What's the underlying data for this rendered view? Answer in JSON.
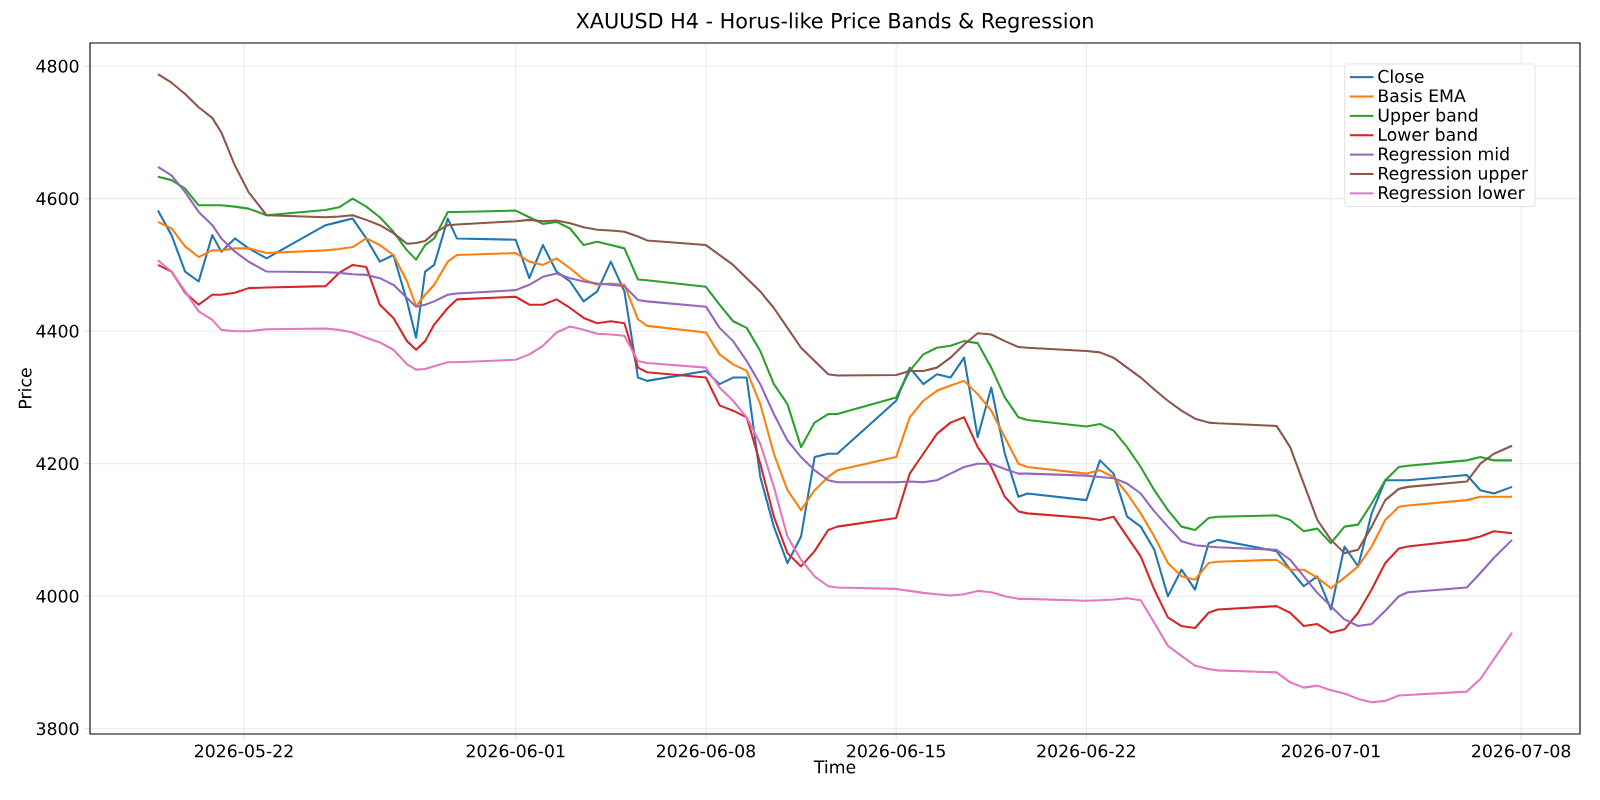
{
  "chart_data": {
    "type": "line",
    "title": "XAUUSD H4 - Horus-like Price Bands & Regression",
    "xlabel": "Time",
    "ylabel": "Price",
    "x": [
      "2026-05-18T20:00",
      "2026-05-19T08:00",
      "2026-05-19T20:00",
      "2026-05-20T08:00",
      "2026-05-20T20:00",
      "2026-05-21T04:00",
      "2026-05-21T16:00",
      "2026-05-22T04:00",
      "2026-05-22T20:00",
      "2026-05-25T00:00",
      "2026-05-25T12:00",
      "2026-05-26T00:00",
      "2026-05-26T12:00",
      "2026-05-27T00:00",
      "2026-05-27T12:00",
      "2026-05-28T00:00",
      "2026-05-28T08:00",
      "2026-05-28T16:00",
      "2026-05-29T00:00",
      "2026-05-29T12:00",
      "2026-05-29T20:00",
      "2026-06-01T00:00",
      "2026-06-01T12:00",
      "2026-06-02T00:00",
      "2026-06-02T12:00",
      "2026-06-03T00:00",
      "2026-06-03T12:00",
      "2026-06-04T00:00",
      "2026-06-04T12:00",
      "2026-06-05T00:00",
      "2026-06-05T12:00",
      "2026-06-05T20:00",
      "2026-06-08T00:00",
      "2026-06-08T12:00",
      "2026-06-09T00:00",
      "2026-06-09T12:00",
      "2026-06-10T00:00",
      "2026-06-10T12:00",
      "2026-06-11T00:00",
      "2026-06-11T12:00",
      "2026-06-12T00:00",
      "2026-06-12T12:00",
      "2026-06-12T20:00",
      "2026-06-15T00:00",
      "2026-06-15T12:00",
      "2026-06-16T00:00",
      "2026-06-16T12:00",
      "2026-06-17T00:00",
      "2026-06-17T12:00",
      "2026-06-18T00:00",
      "2026-06-18T12:00",
      "2026-06-19T00:00",
      "2026-06-19T12:00",
      "2026-06-19T20:00",
      "2026-06-22T00:00",
      "2026-06-22T12:00",
      "2026-06-23T00:00",
      "2026-06-23T12:00",
      "2026-06-24T00:00",
      "2026-06-24T12:00",
      "2026-06-25T00:00",
      "2026-06-25T12:00",
      "2026-06-26T00:00",
      "2026-06-26T12:00",
      "2026-06-26T20:00",
      "2026-06-29T00:00",
      "2026-06-29T12:00",
      "2026-06-30T00:00",
      "2026-06-30T12:00",
      "2026-07-01T00:00",
      "2026-07-01T12:00",
      "2026-07-02T00:00",
      "2026-07-02T12:00",
      "2026-07-03T00:00",
      "2026-07-03T12:00",
      "2026-07-03T20:00",
      "2026-07-06T00:00",
      "2026-07-06T12:00",
      "2026-07-07T00:00",
      "2026-07-07T16:00"
    ],
    "series": [
      {
        "name": "Close",
        "color": "#1f77b4",
        "values": [
          4582,
          4545,
          4490,
          4475,
          4545,
          4520,
          4540,
          4525,
          4510,
          4560,
          4565,
          4570,
          4540,
          4505,
          4515,
          4445,
          4390,
          4490,
          4500,
          4570,
          4540,
          4538,
          4480,
          4530,
          4490,
          4475,
          4445,
          4460,
          4505,
          4460,
          4330,
          4325,
          4340,
          4320,
          4330,
          4330,
          4180,
          4105,
          4050,
          4090,
          4210,
          4215,
          4215,
          4295,
          4345,
          4320,
          4335,
          4330,
          4360,
          4240,
          4315,
          4215,
          4150,
          4155,
          4145,
          4205,
          4185,
          4120,
          4105,
          4070,
          4000,
          4040,
          4010,
          4080,
          4085,
          4068,
          4040,
          4015,
          4030,
          3980,
          4075,
          4045,
          4125,
          4175,
          4175,
          4175,
          4183,
          4160,
          4155,
          4165
        ]
      },
      {
        "name": "Basis EMA",
        "color": "#ff7f0e",
        "values": [
          4565,
          4555,
          4528,
          4512,
          4522,
          4522,
          4525,
          4525,
          4518,
          4522,
          4524,
          4527,
          4540,
          4530,
          4515,
          4475,
          4438,
          4455,
          4470,
          4505,
          4515,
          4518,
          4505,
          4500,
          4510,
          4495,
          4478,
          4470,
          4472,
          4470,
          4418,
          4408,
          4398,
          4365,
          4350,
          4340,
          4290,
          4215,
          4160,
          4130,
          4160,
          4180,
          4190,
          4210,
          4270,
          4295,
          4310,
          4318,
          4325,
          4305,
          4280,
          4240,
          4200,
          4195,
          4185,
          4190,
          4180,
          4155,
          4125,
          4090,
          4050,
          4030,
          4025,
          4050,
          4052,
          4055,
          4040,
          4040,
          4028,
          4012,
          4028,
          4045,
          4075,
          4115,
          4135,
          4137,
          4145,
          4150,
          4150,
          4150
        ]
      },
      {
        "name": "Upper band",
        "color": "#2ca02c",
        "values": [
          4633,
          4628,
          4615,
          4590,
          4590,
          4590,
          4588,
          4585,
          4575,
          4583,
          4587,
          4600,
          4588,
          4572,
          4550,
          4522,
          4508,
          4530,
          4540,
          4580,
          4580,
          4582,
          4572,
          4562,
          4565,
          4555,
          4530,
          4535,
          4530,
          4525,
          4478,
          4477,
          4467,
          4440,
          4415,
          4405,
          4370,
          4320,
          4290,
          4225,
          4262,
          4275,
          4275,
          4300,
          4340,
          4365,
          4375,
          4378,
          4385,
          4382,
          4345,
          4300,
          4270,
          4266,
          4256,
          4260,
          4250,
          4225,
          4195,
          4160,
          4130,
          4105,
          4100,
          4118,
          4120,
          4122,
          4115,
          4098,
          4102,
          4080,
          4105,
          4108,
          4140,
          4175,
          4195,
          4197,
          4205,
          4210,
          4205,
          4205
        ]
      },
      {
        "name": "Lower band",
        "color": "#d62728",
        "values": [
          4500,
          4490,
          4458,
          4440,
          4455,
          4455,
          4458,
          4465,
          4466,
          4468,
          4488,
          4500,
          4497,
          4440,
          4420,
          4385,
          4372,
          4385,
          4410,
          4435,
          4448,
          4452,
          4440,
          4440,
          4448,
          4435,
          4420,
          4412,
          4415,
          4412,
          4345,
          4338,
          4330,
          4288,
          4280,
          4270,
          4200,
          4120,
          4065,
          4045,
          4068,
          4100,
          4105,
          4118,
          4185,
          4215,
          4245,
          4262,
          4270,
          4225,
          4195,
          4150,
          4128,
          4125,
          4118,
          4115,
          4120,
          4090,
          4060,
          4010,
          3968,
          3955,
          3952,
          3975,
          3980,
          3985,
          3975,
          3955,
          3958,
          3945,
          3950,
          3975,
          4010,
          4050,
          4072,
          4075,
          4085,
          4090,
          4098,
          4095
        ]
      },
      {
        "name": "Regression mid",
        "color": "#9467bd",
        "values": [
          4648,
          4635,
          4610,
          4580,
          4560,
          4540,
          4520,
          4505,
          4490,
          4489,
          4488,
          4486,
          4485,
          4480,
          4470,
          4450,
          4437,
          4440,
          4445,
          4455,
          4457,
          4462,
          4470,
          4482,
          4487,
          4480,
          4475,
          4472,
          4470,
          4468,
          4447,
          4445,
          4437,
          4405,
          4385,
          4355,
          4320,
          4275,
          4235,
          4210,
          4190,
          4175,
          4172,
          4172,
          4173,
          4172,
          4175,
          4185,
          4195,
          4200,
          4200,
          4192,
          4185,
          4185,
          4182,
          4180,
          4178,
          4170,
          4155,
          4128,
          4105,
          4083,
          4077,
          4075,
          4074,
          4070,
          4055,
          4030,
          4005,
          3985,
          3965,
          3955,
          3958,
          3978,
          4000,
          4006,
          4013,
          4035,
          4058,
          4085
        ]
      },
      {
        "name": "Regression upper",
        "color": "#8c564b",
        "values": [
          4788,
          4775,
          4758,
          4738,
          4722,
          4700,
          4650,
          4610,
          4575,
          4572,
          4573,
          4575,
          4568,
          4560,
          4548,
          4532,
          4533,
          4536,
          4548,
          4560,
          4561,
          4566,
          4568,
          4566,
          4567,
          4563,
          4557,
          4553,
          4552,
          4550,
          4543,
          4537,
          4530,
          4515,
          4500,
          4480,
          4460,
          4435,
          4405,
          4375,
          4355,
          4335,
          4333,
          4334,
          4340,
          4340,
          4345,
          4360,
          4380,
          4397,
          4395,
          4385,
          4376,
          4375,
          4370,
          4368,
          4360,
          4345,
          4330,
          4312,
          4295,
          4280,
          4268,
          4262,
          4261,
          4257,
          4225,
          4170,
          4115,
          4085,
          4065,
          4070,
          4105,
          4145,
          4162,
          4165,
          4173,
          4200,
          4215,
          4227
        ]
      },
      {
        "name": "Regression lower",
        "color": "#e377c2",
        "values": [
          4507,
          4490,
          4460,
          4430,
          4417,
          4402,
          4400,
          4400,
          4403,
          4404,
          4402,
          4398,
          4390,
          4383,
          4372,
          4350,
          4342,
          4343,
          4347,
          4353,
          4353,
          4357,
          4365,
          4378,
          4398,
          4407,
          4402,
          4396,
          4395,
          4393,
          4355,
          4352,
          4345,
          4315,
          4295,
          4270,
          4230,
          4165,
          4090,
          4055,
          4030,
          4015,
          4013,
          4011,
          4008,
          4005,
          4003,
          4001,
          4003,
          4008,
          4006,
          4000,
          3996,
          3996,
          3993,
          3994,
          3995,
          3997,
          3994,
          3960,
          3925,
          3910,
          3895,
          3890,
          3888,
          3885,
          3870,
          3862,
          3865,
          3858,
          3853,
          3845,
          3840,
          3842,
          3850,
          3851,
          3856,
          3875,
          3905,
          3945
        ]
      }
    ],
    "xlim": [
      "2026-05-16T08:00",
      "2026-07-10T04:00"
    ],
    "ylim": [
      3792,
      4835
    ],
    "xticks": [
      "2026-05-22",
      "2026-06-01",
      "2026-06-08",
      "2026-06-15",
      "2026-06-22",
      "2026-07-01",
      "2026-07-08"
    ],
    "yticks": [
      3800,
      4000,
      4200,
      4400,
      4600,
      4800
    ],
    "grid": true,
    "legend": "top right",
    "line_style": "solid",
    "marker": "none"
  }
}
